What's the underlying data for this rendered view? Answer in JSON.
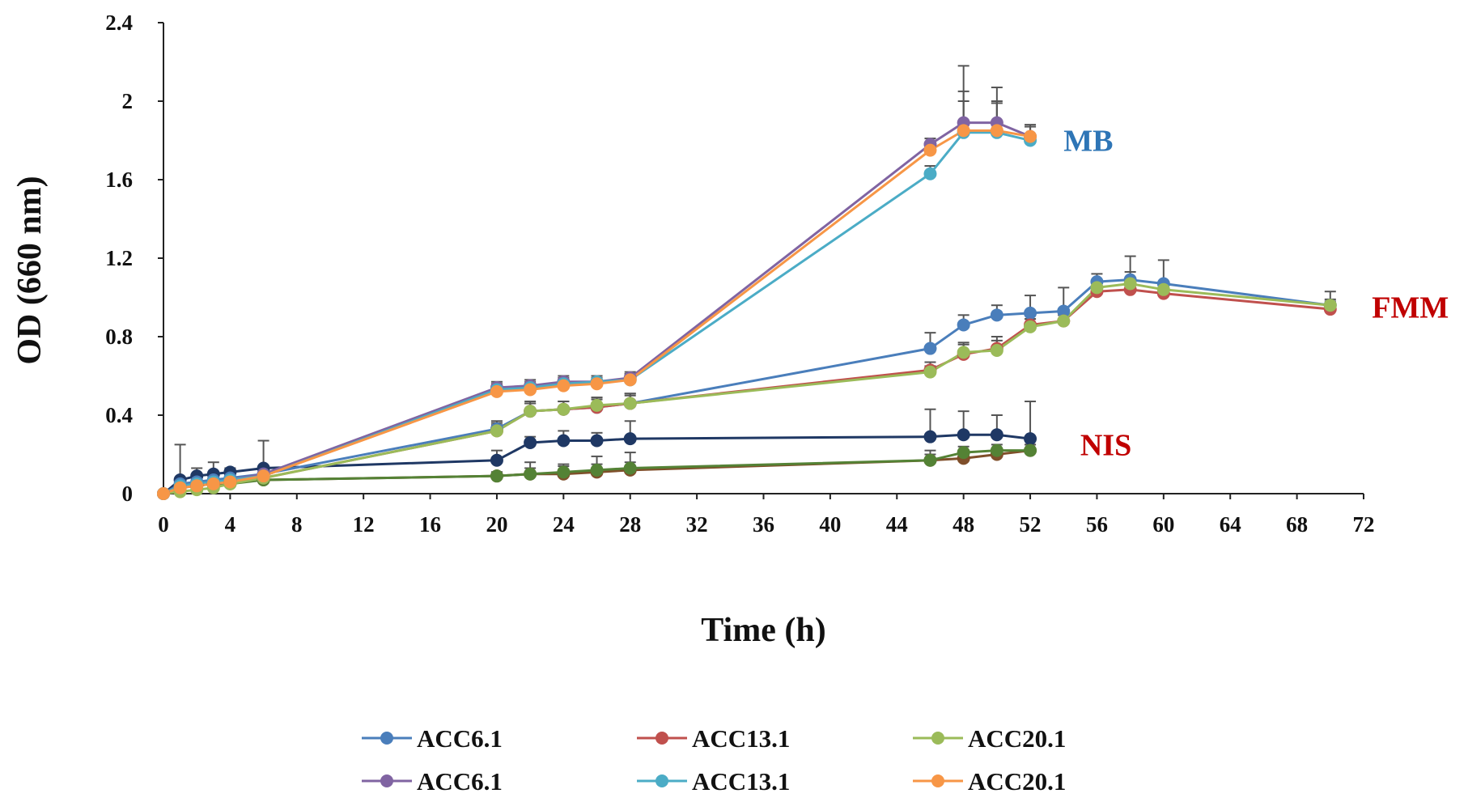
{
  "chart_data": {
    "type": "line",
    "title": "",
    "xlabel": "Time (h)",
    "ylabel": "OD (660 nm)",
    "xlim": [
      0,
      72
    ],
    "ylim": [
      0,
      2.4
    ],
    "xticks": [
      0,
      4,
      8,
      12,
      16,
      20,
      24,
      28,
      32,
      36,
      40,
      44,
      48,
      52,
      56,
      60,
      64,
      68,
      72
    ],
    "yticks": [
      0,
      0.4,
      0.8,
      1.2,
      1.6,
      2.0,
      2.4
    ],
    "ytick_labels": [
      "0",
      "0.4",
      "0.8",
      "1.2",
      "1.6",
      "2",
      "2.4"
    ],
    "grid": false,
    "legend_position": "bottom",
    "annotations": [
      {
        "text": "MB",
        "color": "#2E75B6",
        "x": 54,
        "y": 1.8
      },
      {
        "text": "FMM",
        "color": "#C00000",
        "x": 72.5,
        "y": 0.95
      },
      {
        "text": "NIS",
        "color": "#C00000",
        "x": 55,
        "y": 0.25
      }
    ],
    "series": [
      {
        "name": "ACC6.1",
        "group": "NIS",
        "color": "#1F3864",
        "x": [
          0,
          1,
          2,
          3,
          4,
          6,
          20,
          22,
          24,
          26,
          28,
          46,
          48,
          50,
          52
        ],
        "y": [
          0.0,
          0.07,
          0.09,
          0.1,
          0.11,
          0.13,
          0.17,
          0.26,
          0.27,
          0.27,
          0.28,
          0.29,
          0.3,
          0.3,
          0.28
        ],
        "err": [
          0,
          0.18,
          0.04,
          0.06,
          0.02,
          0.14,
          0.05,
          0.03,
          0.05,
          0.04,
          0.09,
          0.14,
          0.12,
          0.1,
          0.19
        ]
      },
      {
        "name": "ACC13.1",
        "group": "NIS",
        "color": "#7F4F2A",
        "x": [
          0,
          1,
          2,
          3,
          4,
          6,
          20,
          22,
          24,
          26,
          28,
          46,
          48,
          50,
          52
        ],
        "y": [
          0.0,
          0.04,
          0.05,
          0.05,
          0.06,
          0.07,
          0.09,
          0.1,
          0.1,
          0.11,
          0.12,
          0.17,
          0.18,
          0.2,
          0.22
        ],
        "err": [
          0,
          0.02,
          0.02,
          0.02,
          0.02,
          0.02,
          0.02,
          0.06,
          0.05,
          0.08,
          0.09,
          0.05,
          0.04,
          0.03,
          0.03
        ]
      },
      {
        "name": "ACC20.1",
        "group": "NIS",
        "color": "#548235",
        "x": [
          0,
          1,
          2,
          3,
          4,
          6,
          20,
          22,
          24,
          26,
          28,
          46,
          48,
          50,
          52
        ],
        "y": [
          0.0,
          0.03,
          0.04,
          0.05,
          0.05,
          0.07,
          0.09,
          0.1,
          0.11,
          0.12,
          0.13,
          0.17,
          0.21,
          0.22,
          0.22
        ],
        "err": [
          0,
          0.02,
          0.02,
          0.02,
          0.02,
          0.02,
          0.02,
          0.03,
          0.03,
          0.03,
          0.03,
          0.03,
          0.03,
          0.03,
          0.03
        ]
      },
      {
        "name": "ACC6.1",
        "group": "FMM",
        "color": "#4A7EBB",
        "x": [
          0,
          1,
          2,
          3,
          4,
          6,
          20,
          22,
          24,
          26,
          28,
          46,
          48,
          50,
          52,
          54,
          56,
          58,
          60,
          70
        ],
        "y": [
          0.0,
          0.05,
          0.06,
          0.07,
          0.08,
          0.1,
          0.33,
          0.42,
          0.43,
          0.44,
          0.46,
          0.74,
          0.86,
          0.91,
          0.92,
          0.93,
          1.08,
          1.09,
          1.07,
          0.96
        ],
        "err": [
          0,
          0.02,
          0.02,
          0.02,
          0.02,
          0.03,
          0.04,
          0.05,
          0.04,
          0.05,
          0.05,
          0.08,
          0.05,
          0.05,
          0.09,
          0.12,
          0.04,
          0.12,
          0.12,
          0.07
        ]
      },
      {
        "name": "ACC13.1",
        "group": "FMM",
        "color": "#C0504D",
        "x": [
          0,
          1,
          2,
          3,
          4,
          6,
          20,
          22,
          24,
          26,
          28,
          46,
          48,
          50,
          52,
          54,
          56,
          58,
          60,
          70
        ],
        "y": [
          0.0,
          0.03,
          0.04,
          0.05,
          0.06,
          0.08,
          0.32,
          0.42,
          0.43,
          0.44,
          0.46,
          0.63,
          0.71,
          0.74,
          0.86,
          0.88,
          1.03,
          1.04,
          1.02,
          0.94
        ],
        "err": [
          0,
          0.02,
          0.02,
          0.02,
          0.02,
          0.02,
          0.03,
          0.04,
          0.04,
          0.04,
          0.05,
          0.04,
          0.06,
          0.06,
          0.03,
          0.03,
          0.03,
          0.05,
          0.04,
          0.04
        ]
      },
      {
        "name": "ACC20.1",
        "group": "FMM",
        "color": "#9BBB59",
        "x": [
          0,
          1,
          2,
          3,
          4,
          6,
          20,
          22,
          24,
          26,
          28,
          46,
          48,
          50,
          52,
          54,
          56,
          58,
          60,
          70
        ],
        "y": [
          0.0,
          0.01,
          0.02,
          0.03,
          0.05,
          0.08,
          0.32,
          0.42,
          0.43,
          0.45,
          0.46,
          0.62,
          0.72,
          0.73,
          0.85,
          0.88,
          1.05,
          1.07,
          1.04,
          0.96
        ],
        "err": [
          0,
          0.02,
          0.02,
          0.02,
          0.02,
          0.02,
          0.04,
          0.04,
          0.04,
          0.04,
          0.04,
          0.03,
          0.04,
          0.05,
          0.04,
          0.03,
          0.03,
          0.06,
          0.04,
          0.03
        ]
      },
      {
        "name": "ACC6.1",
        "group": "MB",
        "color": "#8064A2",
        "x": [
          0,
          1,
          2,
          3,
          4,
          6,
          20,
          22,
          24,
          26,
          28,
          46,
          48,
          50,
          52
        ],
        "y": [
          0.0,
          0.04,
          0.05,
          0.06,
          0.07,
          0.1,
          0.54,
          0.55,
          0.57,
          0.57,
          0.59,
          1.78,
          1.89,
          1.89,
          1.82
        ],
        "err": [
          0,
          0.02,
          0.02,
          0.02,
          0.02,
          0.02,
          0.03,
          0.03,
          0.03,
          0.03,
          0.03,
          0.03,
          0.29,
          0.18,
          0.06
        ]
      },
      {
        "name": "ACC13.1",
        "group": "MB",
        "color": "#4BACC6",
        "x": [
          0,
          1,
          2,
          3,
          4,
          6,
          20,
          22,
          24,
          26,
          28,
          46,
          48,
          50,
          52
        ],
        "y": [
          0.0,
          0.04,
          0.05,
          0.06,
          0.07,
          0.09,
          0.53,
          0.54,
          0.56,
          0.57,
          0.58,
          1.63,
          1.84,
          1.84,
          1.8
        ],
        "err": [
          0,
          0.02,
          0.02,
          0.02,
          0.02,
          0.02,
          0.03,
          0.03,
          0.03,
          0.03,
          0.03,
          0.04,
          0.16,
          0.15,
          0.07
        ]
      },
      {
        "name": "ACC20.1",
        "group": "MB",
        "color": "#F79646",
        "x": [
          0,
          1,
          2,
          3,
          4,
          6,
          20,
          22,
          24,
          26,
          28,
          46,
          48,
          50,
          52
        ],
        "y": [
          0.0,
          0.03,
          0.04,
          0.05,
          0.06,
          0.09,
          0.52,
          0.53,
          0.55,
          0.56,
          0.58,
          1.75,
          1.85,
          1.85,
          1.82
        ],
        "err": [
          0,
          0.02,
          0.02,
          0.02,
          0.02,
          0.02,
          0.03,
          0.03,
          0.03,
          0.03,
          0.03,
          0.03,
          0.2,
          0.15,
          0.05
        ]
      }
    ],
    "legend": [
      {
        "label": "ACC6.1",
        "color": "#4A7EBB"
      },
      {
        "label": "ACC13.1",
        "color": "#C0504D"
      },
      {
        "label": "ACC20.1",
        "color": "#9BBB59"
      },
      {
        "label": "ACC6.1",
        "color": "#8064A2"
      },
      {
        "label": "ACC13.1",
        "color": "#4BACC6"
      },
      {
        "label": "ACC20.1",
        "color": "#F79646"
      }
    ]
  }
}
